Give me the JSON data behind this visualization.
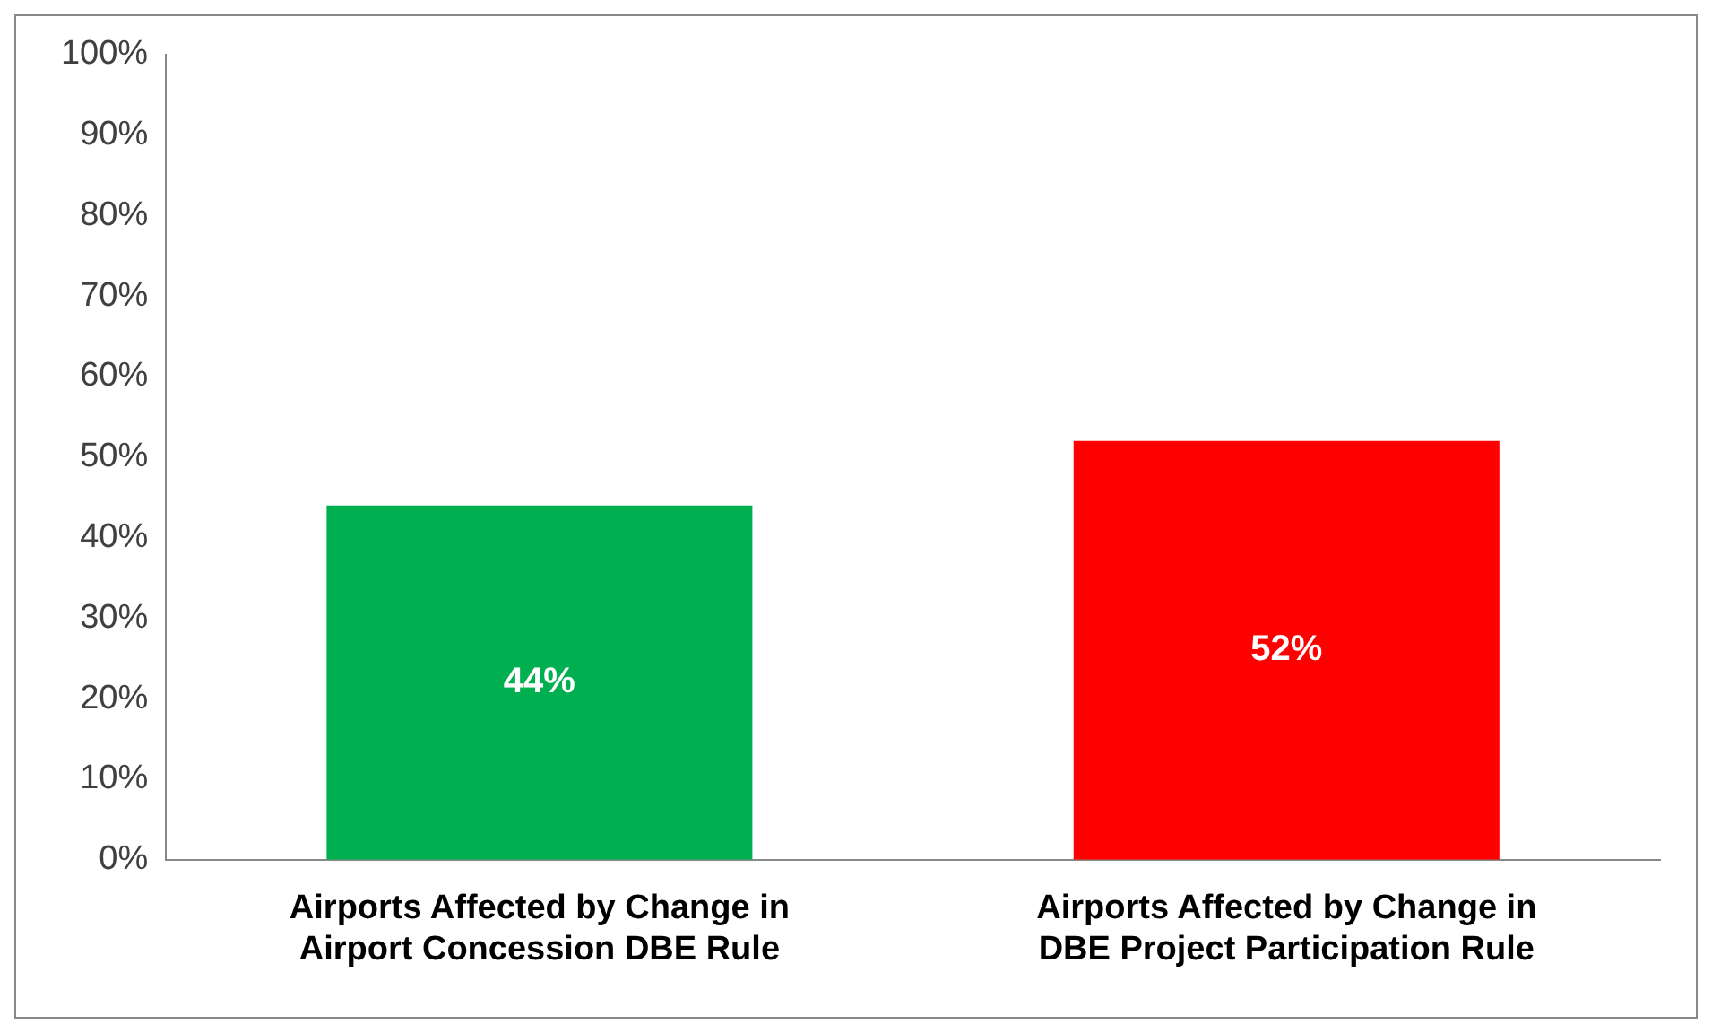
{
  "chart_data": {
    "type": "bar",
    "categories": [
      "Airports Affected by Change in Airport Concession DBE Rule",
      "Airports Affected by Change in DBE Project Participation Rule"
    ],
    "values": [
      44,
      52
    ],
    "colors": [
      "#00b050",
      "#ff0000"
    ],
    "ylim": [
      0,
      100
    ],
    "yticks": [
      {
        "value": 0,
        "label": "0%"
      },
      {
        "value": 10,
        "label": "10%"
      },
      {
        "value": 20,
        "label": "20%"
      },
      {
        "value": 30,
        "label": "30%"
      },
      {
        "value": 40,
        "label": "40%"
      },
      {
        "value": 50,
        "label": "50%"
      },
      {
        "value": 60,
        "label": "60%"
      },
      {
        "value": 70,
        "label": "70%"
      },
      {
        "value": 80,
        "label": "80%"
      },
      {
        "value": 90,
        "label": "90%"
      },
      {
        "value": 100,
        "label": "100%"
      }
    ],
    "value_labels": [
      "44%",
      "52%"
    ],
    "grid": false,
    "legend": false
  }
}
